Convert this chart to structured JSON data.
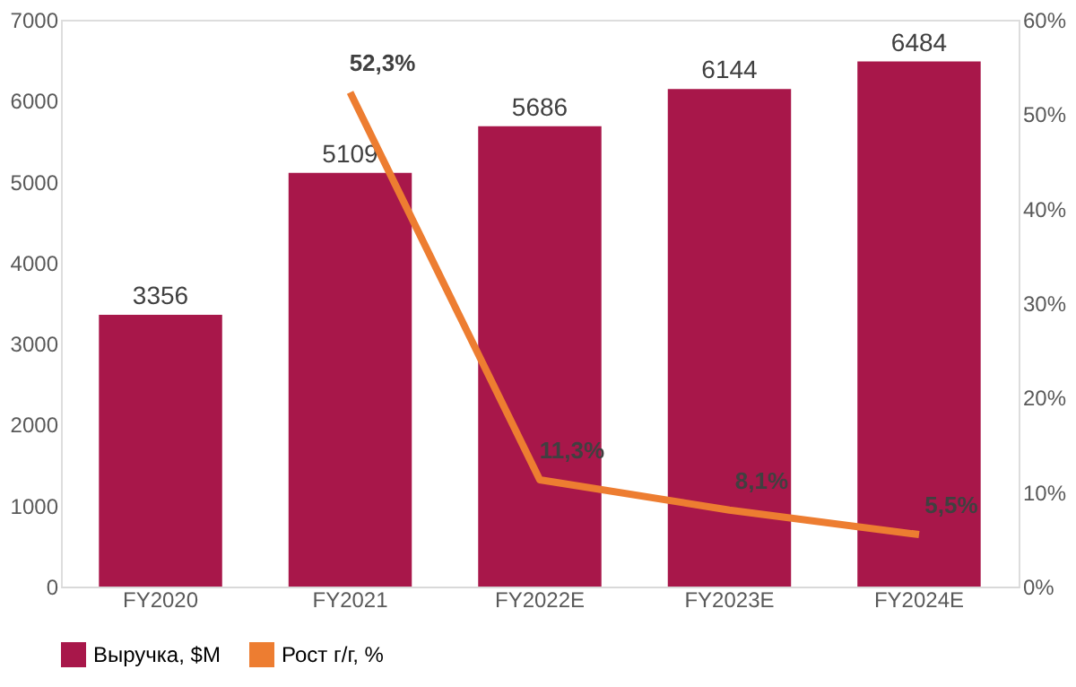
{
  "chart_data": {
    "type": "bar",
    "categories": [
      "FY2020",
      "FY2021",
      "FY2022E",
      "FY2023E",
      "FY2024E"
    ],
    "series": [
      {
        "name": "Выручка, $M",
        "color": "#a8174a",
        "values": [
          3356,
          5109,
          5686,
          6144,
          6484
        ],
        "value_labels": [
          "3356",
          "5109",
          "5686",
          "6144",
          "6484"
        ]
      },
      {
        "name": "Рост г/г, %",
        "type": "line",
        "axis": "y2",
        "color": "#ed7d31",
        "values": [
          null,
          52.3,
          11.3,
          8.1,
          5.5
        ],
        "value_labels": [
          null,
          "52,3%",
          "11,3%",
          "8,1%",
          "5,5%"
        ]
      }
    ],
    "ylim": [
      0,
      7000
    ],
    "yticks": [
      0,
      1000,
      2000,
      3000,
      4000,
      5000,
      6000,
      7000
    ],
    "y2lim": [
      0,
      60
    ],
    "y2ticks": [
      {
        "value": 0,
        "label": "0%"
      },
      {
        "value": 10,
        "label": "10%"
      },
      {
        "value": 20,
        "label": "20%"
      },
      {
        "value": 30,
        "label": "30%"
      },
      {
        "value": 40,
        "label": "40%"
      },
      {
        "value": 50,
        "label": "50%"
      },
      {
        "value": 60,
        "label": "60%"
      }
    ],
    "grid": false,
    "legend": "bottom",
    "marker": "none",
    "line_style": "solid"
  }
}
